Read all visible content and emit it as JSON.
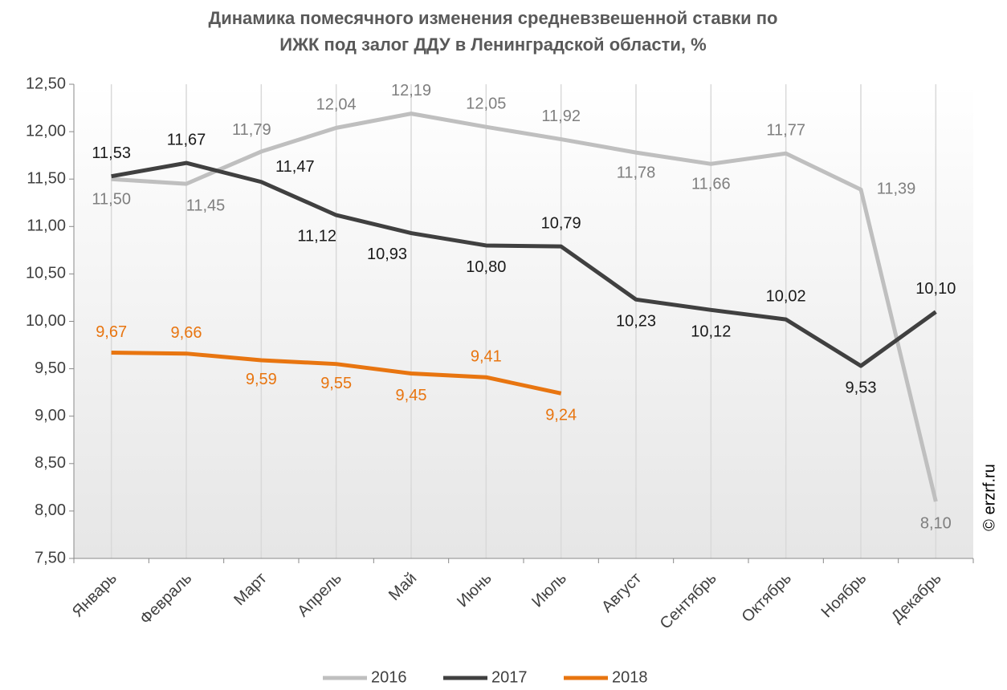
{
  "chart_data": {
    "type": "line",
    "title": "Динамика помесячного изменения средневзвешенной ставки по ИЖК под залог ДДУ в Ленинградской области, %",
    "title_lines": [
      "Динамика помесячного изменения средневзвешенной ставки по",
      "ИЖК под залог ДДУ в Ленинградской области, %"
    ],
    "watermark": "© erzrf.ru",
    "categories": [
      "Январь",
      "Февраль",
      "Март",
      "Апрель",
      "Май",
      "Июнь",
      "Июль",
      "Август",
      "Сентябрь",
      "Октябрь",
      "Ноябрь",
      "Декабрь"
    ],
    "series": [
      {
        "name": "2016",
        "color": "#bfbfbf",
        "label_color": "#7f7f7f",
        "values": [
          11.5,
          11.45,
          11.79,
          12.04,
          12.19,
          12.05,
          11.92,
          11.78,
          11.66,
          11.77,
          11.39,
          8.1
        ],
        "value_labels": [
          "11,50",
          "11,45",
          "11,79",
          "12,04",
          "12,19",
          "12,05",
          "11,92",
          "11,78",
          "11,66",
          "11,77",
          "11,39",
          "8,10"
        ]
      },
      {
        "name": "2017",
        "color": "#404040",
        "label_color": "#1a1a1a",
        "values": [
          11.53,
          11.67,
          11.47,
          11.12,
          10.93,
          10.8,
          10.79,
          10.23,
          10.12,
          10.02,
          9.53,
          10.1
        ],
        "value_labels": [
          "11,53",
          "11,67",
          "11,47",
          "11,12",
          "10,93",
          "10,80",
          "10,79",
          "10,23",
          "10,12",
          "10,02",
          "9,53",
          "10,10"
        ]
      },
      {
        "name": "2018",
        "color": "#e87510",
        "label_color": "#e87510",
        "values": [
          9.67,
          9.66,
          9.59,
          9.55,
          9.45,
          9.41,
          9.24,
          null,
          null,
          null,
          null,
          null
        ],
        "value_labels": [
          "9,67",
          "9,66",
          "9,59",
          "9,55",
          "9,45",
          "9,41",
          "9,24",
          null,
          null,
          null,
          null,
          null
        ]
      }
    ],
    "ylim": [
      7.5,
      12.5
    ],
    "yticks": [
      {
        "value": 7.5,
        "label": "7,50"
      },
      {
        "value": 8,
        "label": "8,00"
      },
      {
        "value": 8.5,
        "label": "8,50"
      },
      {
        "value": 9,
        "label": "9,00"
      },
      {
        "value": 9.5,
        "label": "9,50"
      },
      {
        "value": 10,
        "label": "10,00"
      },
      {
        "value": 10.5,
        "label": "10,50"
      },
      {
        "value": 11,
        "label": "11,00"
      },
      {
        "value": 11.5,
        "label": "11,50"
      },
      {
        "value": 12,
        "label": "12,00"
      },
      {
        "value": 12.5,
        "label": "12,50"
      }
    ],
    "grid": true,
    "legend": "bottom"
  }
}
